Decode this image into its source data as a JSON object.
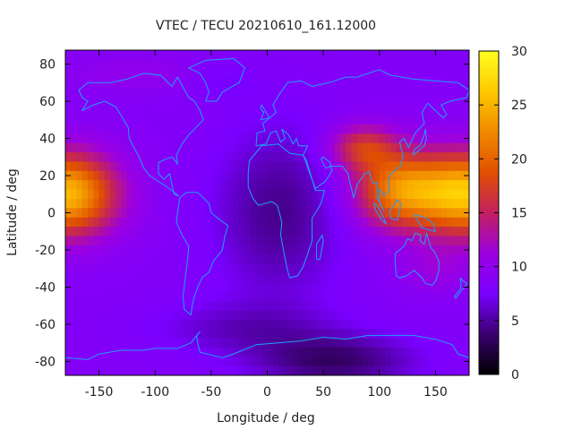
{
  "chart_data": {
    "type": "heatmap",
    "title": "VTEC / TECU 20210610_161.12000",
    "xlabel": "Longitude / deg",
    "ylabel": "Latitude / deg",
    "xlim": [
      -180,
      180
    ],
    "ylim": [
      -87.5,
      87.5
    ],
    "colorbar": {
      "min": 0,
      "max": 30,
      "ticks": [
        0,
        5,
        10,
        15,
        20,
        25,
        30
      ]
    },
    "x_ticks": [
      -150,
      -100,
      -50,
      0,
      50,
      100,
      150
    ],
    "y_ticks": [
      -80,
      -60,
      -40,
      -20,
      0,
      20,
      40,
      60,
      80
    ],
    "palette": [
      "#000000",
      "#3a0070",
      "#7a00ff",
      "#9c00e0",
      "#c22060",
      "#e05000",
      "#f08a00",
      "#ffc800",
      "#ffff20"
    ],
    "coastline_color": "#1fa0ff",
    "grid": false
  }
}
